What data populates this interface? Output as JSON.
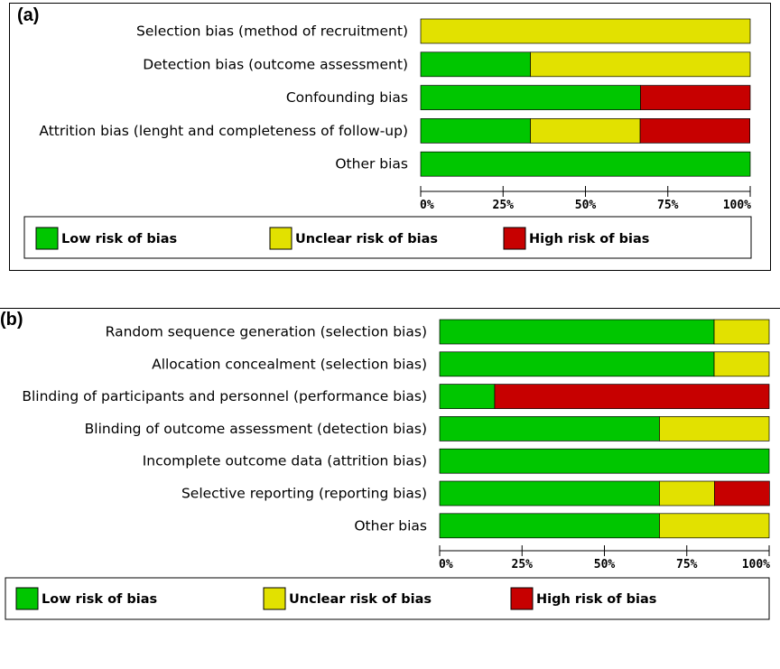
{
  "colors": {
    "low": "#00c600",
    "unclear": "#e2e100",
    "high": "#c70000"
  },
  "chart_data": [
    {
      "type": "bar",
      "panel_label": "(a)",
      "orientation": "horizontal-stacked-100",
      "categories": [
        "Selection bias (method of recruitment)",
        "Detection bias (outcome assessment)",
        "Confounding bias",
        "Attrition bias (lenght and completeness of follow-up)",
        "Other bias"
      ],
      "series": [
        {
          "name": "Low risk of bias",
          "key": "low",
          "values": [
            0,
            33.3,
            66.7,
            33.3,
            100
          ]
        },
        {
          "name": "Unclear risk of bias",
          "key": "unclear",
          "values": [
            100,
            66.7,
            0,
            33.3,
            0
          ]
        },
        {
          "name": "High risk of bias",
          "key": "high",
          "values": [
            0,
            0,
            33.3,
            33.3,
            0
          ]
        }
      ],
      "xlim": [
        0,
        100
      ],
      "tick_labels": [
        "0%",
        "25%",
        "50%",
        "75%",
        "100%"
      ],
      "legend": [
        "Low risk of bias",
        "Unclear risk of bias",
        "High risk of bias"
      ],
      "legend_placement": "bottom"
    },
    {
      "type": "bar",
      "panel_label": "(b)",
      "orientation": "horizontal-stacked-100",
      "categories": [
        "Random sequence generation (selection bias)",
        "Allocation concealment (selection bias)",
        "Blinding of participants and personnel (performance bias)",
        "Blinding of outcome assessment (detection bias)",
        "Incomplete outcome data (attrition bias)",
        "Selective reporting (reporting bias)",
        "Other bias"
      ],
      "series": [
        {
          "name": "Low risk of bias",
          "key": "low",
          "values": [
            83.3,
            83.3,
            16.7,
            66.7,
            100,
            66.7,
            66.7
          ]
        },
        {
          "name": "Unclear risk of bias",
          "key": "unclear",
          "values": [
            16.7,
            16.7,
            0,
            33.3,
            0,
            16.7,
            33.3
          ]
        },
        {
          "name": "High risk of bias",
          "key": "high",
          "values": [
            0,
            0,
            83.3,
            0,
            0,
            16.7,
            0
          ]
        }
      ],
      "xlim": [
        0,
        100
      ],
      "tick_labels": [
        "0%",
        "25%",
        "50%",
        "75%",
        "100%"
      ],
      "legend": [
        "Low risk of bias",
        "Unclear risk of bias",
        "High risk of bias"
      ],
      "legend_placement": "bottom"
    }
  ]
}
